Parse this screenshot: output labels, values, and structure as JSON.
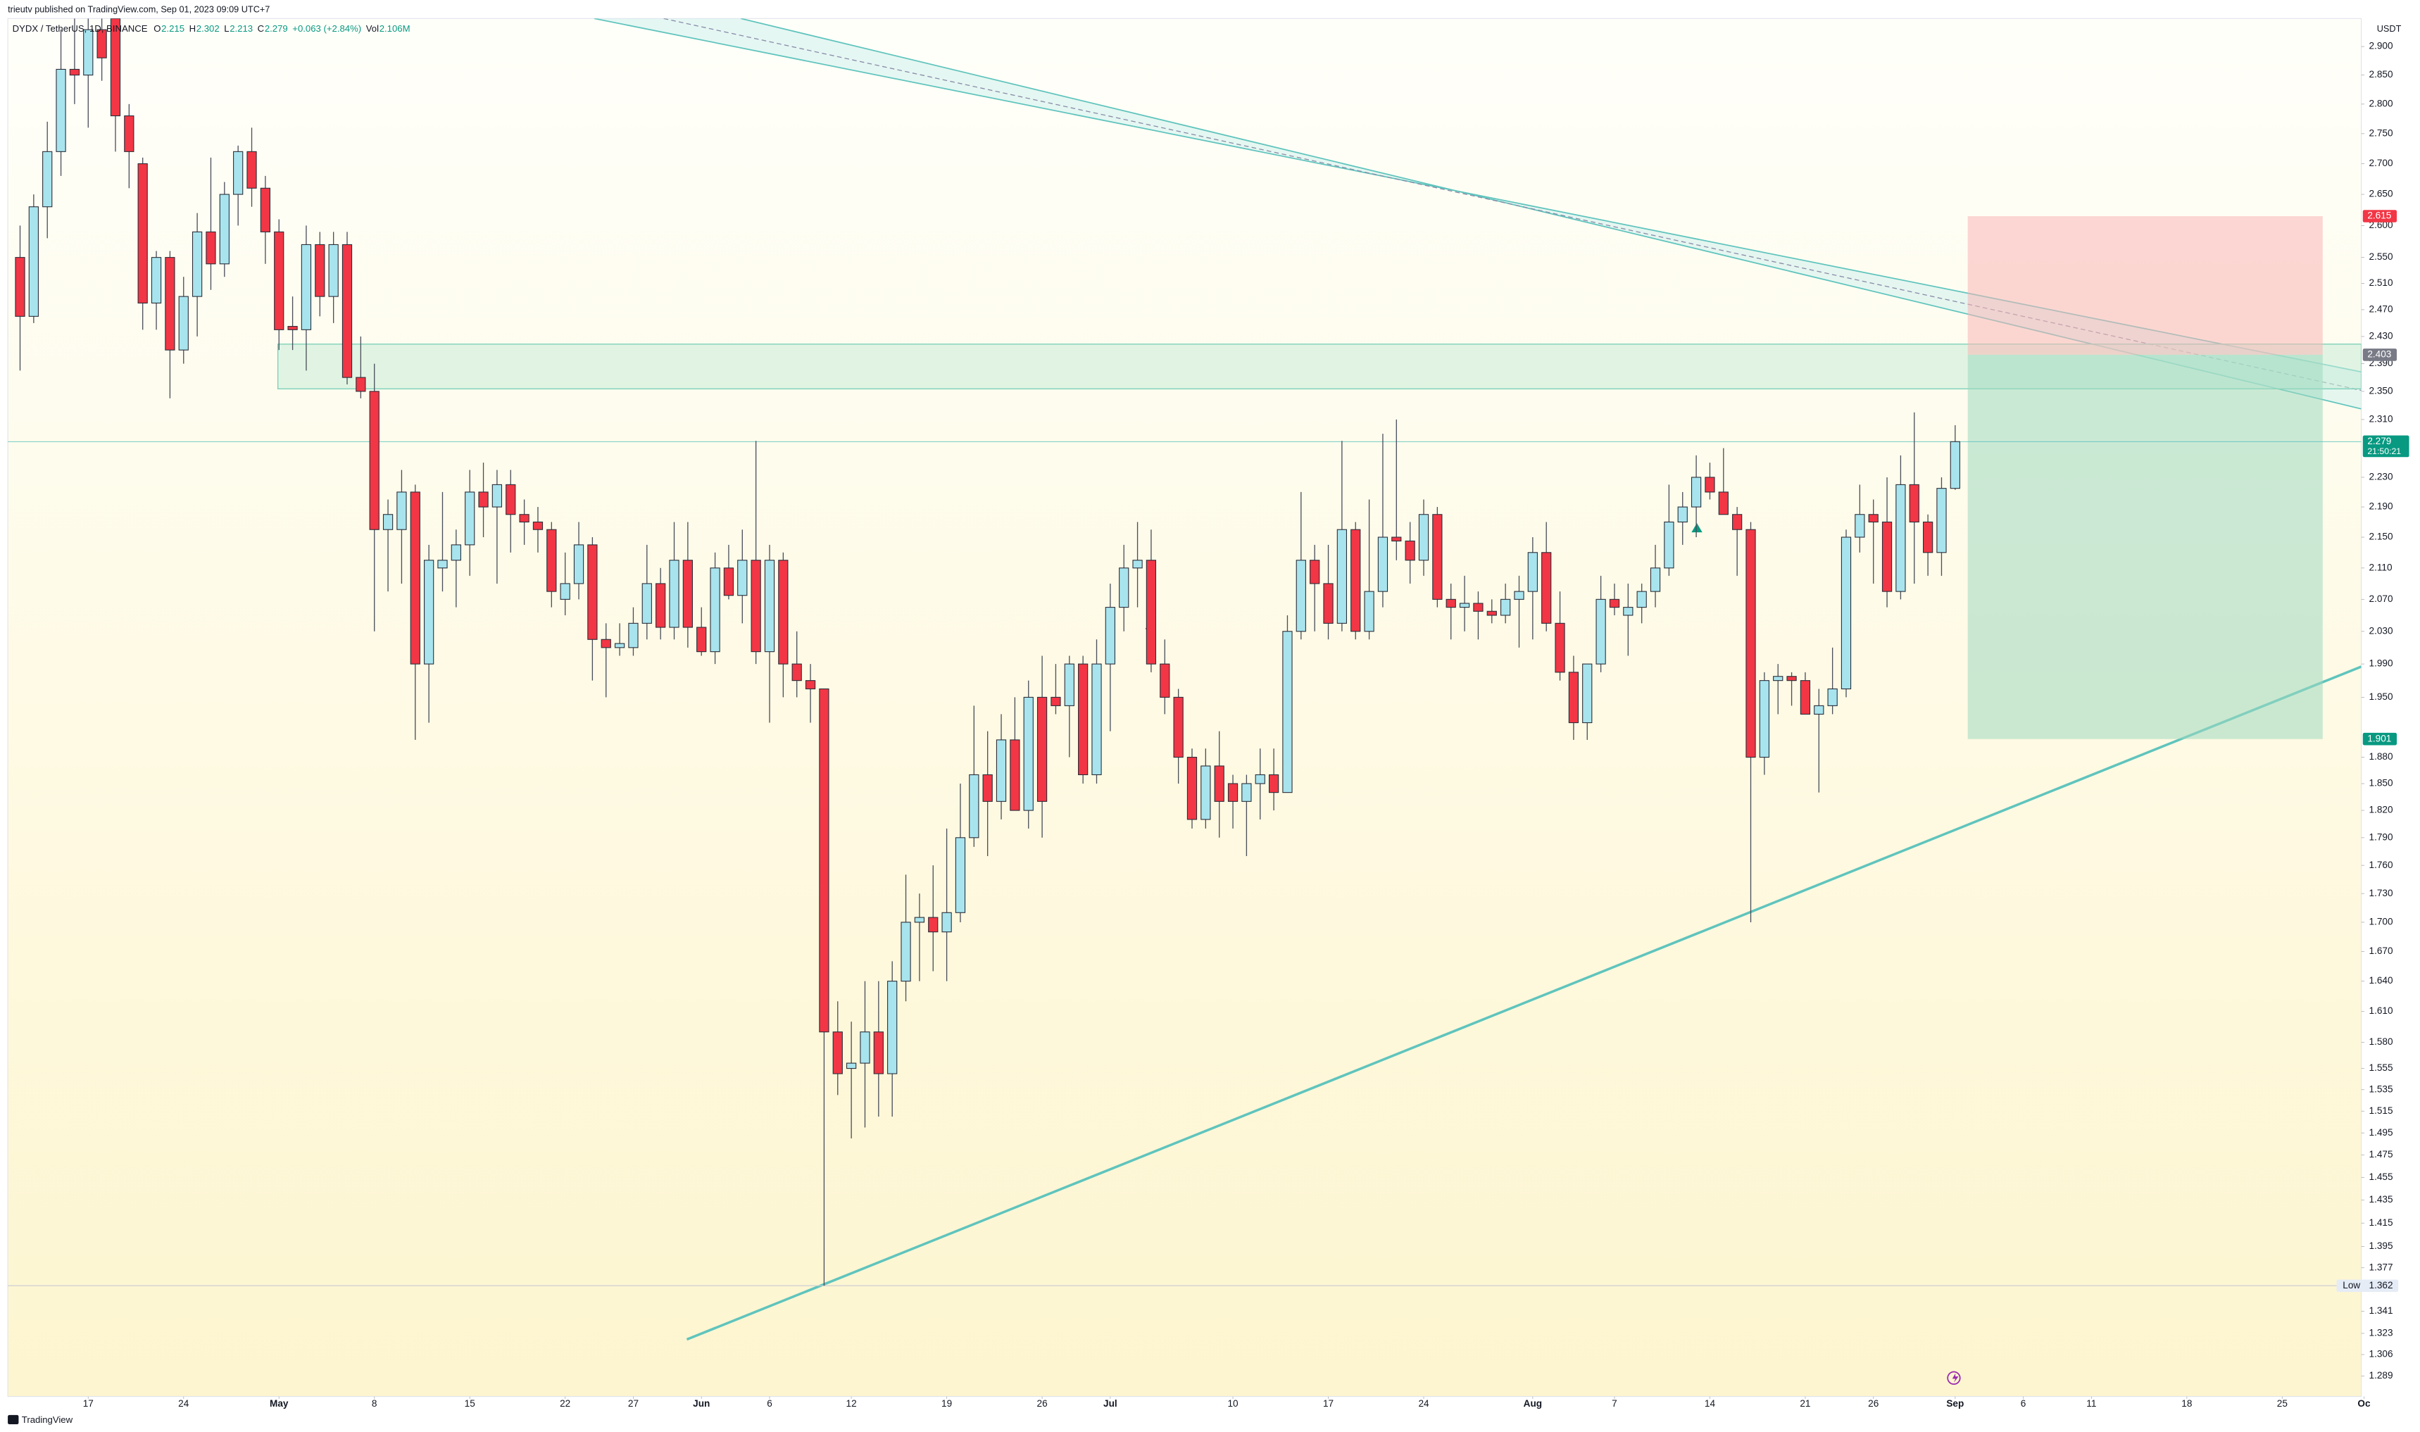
{
  "header": {
    "publisher": "trieutv published on TradingView.com, Sep 01, 2023 09:09 UTC+7",
    "symbol": "DYDX / TetherUS, 1D, BINANCE",
    "legend_labels": [
      "O",
      "H",
      "L",
      "C"
    ],
    "change": "+0.063 (+2.84%)",
    "volume_label": "Vol",
    "volume": "2.106M",
    "currency": "USDT",
    "brand": "TradingView"
  },
  "chart_data": {
    "type": "candlestick",
    "log_scale": true,
    "grid": false,
    "up_color": "#a8e4ee",
    "down_color": "#f23645",
    "ylim": [
      1.273,
      2.95
    ],
    "xlim": [
      -0.9,
      171.8
    ],
    "yticks": [
      {
        "value": 2.9,
        "label": "2.900"
      },
      {
        "value": 2.85,
        "label": "2.850"
      },
      {
        "value": 2.8,
        "label": "2.800"
      },
      {
        "value": 2.75,
        "label": "2.750"
      },
      {
        "value": 2.7,
        "label": "2.700"
      },
      {
        "value": 2.65,
        "label": "2.650"
      },
      {
        "value": 2.6,
        "label": "2.600"
      },
      {
        "value": 2.55,
        "label": "2.550"
      },
      {
        "value": 2.51,
        "label": "2.510"
      },
      {
        "value": 2.47,
        "label": "2.470"
      },
      {
        "value": 2.43,
        "label": "2.430"
      },
      {
        "value": 2.39,
        "label": "2.390"
      },
      {
        "value": 2.35,
        "label": "2.350"
      },
      {
        "value": 2.31,
        "label": "2.310"
      },
      {
        "value": 2.23,
        "label": "2.230"
      },
      {
        "value": 2.19,
        "label": "2.190"
      },
      {
        "value": 2.15,
        "label": "2.150"
      },
      {
        "value": 2.11,
        "label": "2.110"
      },
      {
        "value": 2.07,
        "label": "2.070"
      },
      {
        "value": 2.03,
        "label": "2.030"
      },
      {
        "value": 1.99,
        "label": "1.990"
      },
      {
        "value": 1.95,
        "label": "1.950"
      },
      {
        "value": 1.88,
        "label": "1.880"
      },
      {
        "value": 1.85,
        "label": "1.850"
      },
      {
        "value": 1.82,
        "label": "1.820"
      },
      {
        "value": 1.79,
        "label": "1.790"
      },
      {
        "value": 1.76,
        "label": "1.760"
      },
      {
        "value": 1.73,
        "label": "1.730"
      },
      {
        "value": 1.7,
        "label": "1.700"
      },
      {
        "value": 1.67,
        "label": "1.670"
      },
      {
        "value": 1.64,
        "label": "1.640"
      },
      {
        "value": 1.61,
        "label": "1.610"
      },
      {
        "value": 1.58,
        "label": "1.580"
      },
      1.555,
      1.535,
      1.515,
      1.495,
      1.475,
      1.455,
      1.435,
      1.415,
      1.395,
      1.377,
      1.341,
      1.323,
      1.306,
      1.289
    ],
    "xticks": [
      {
        "value": 5,
        "label": "17"
      },
      {
        "value": 12,
        "label": "24"
      },
      {
        "value": 19,
        "label": "May"
      },
      {
        "value": 26,
        "label": "8"
      },
      {
        "value": 33,
        "label": "15"
      },
      {
        "value": 40,
        "label": "22"
      },
      {
        "value": 45,
        "label": "27"
      },
      {
        "value": 50,
        "label": "Jun"
      },
      {
        "value": 55,
        "label": "6"
      },
      {
        "value": 61,
        "label": "12"
      },
      {
        "value": 68,
        "label": "19"
      },
      {
        "value": 75,
        "label": "26"
      },
      {
        "value": 80,
        "label": "Jul"
      },
      {
        "value": 89,
        "label": "10"
      },
      {
        "value": 96,
        "label": "17"
      },
      {
        "value": 103,
        "label": "24"
      },
      {
        "value": 111,
        "label": "Aug"
      },
      {
        "value": 117,
        "label": "7"
      },
      {
        "value": 124,
        "label": "14"
      },
      {
        "value": 131,
        "label": "21"
      },
      {
        "value": 136,
        "label": "26"
      },
      {
        "value": 142,
        "label": "Sep"
      },
      {
        "value": 147,
        "label": "6"
      },
      {
        "value": 152,
        "label": "11"
      },
      {
        "value": 159,
        "label": "18"
      },
      {
        "value": 166,
        "label": "25"
      },
      {
        "value": 172,
        "label": "Oc"
      }
    ],
    "price_labels": [
      {
        "label": "2.615",
        "value": 2.615,
        "color": "#f23645"
      },
      {
        "label": "2.403",
        "value": 2.403,
        "color": "#787b86"
      },
      {
        "label": "1.901",
        "value": 1.901,
        "color": "#089981"
      }
    ],
    "countdown": "21:50:21",
    "low": {
      "name": "Low",
      "value": 1.362
    },
    "ohlc": [
      [
        2.55,
        2.6,
        2.38,
        2.46
      ],
      [
        2.46,
        2.65,
        2.45,
        2.63
      ],
      [
        2.63,
        2.77,
        2.58,
        2.72
      ],
      [
        2.72,
        2.93,
        2.68,
        2.86
      ],
      [
        2.86,
        2.95,
        2.8,
        2.85
      ],
      [
        2.85,
        2.95,
        2.76,
        2.93
      ],
      [
        2.93,
        2.95,
        2.84,
        2.88
      ],
      [
        2.95,
        2.95,
        2.72,
        2.78
      ],
      [
        2.78,
        2.8,
        2.66,
        2.72
      ],
      [
        2.7,
        2.71,
        2.44,
        2.48
      ],
      [
        2.48,
        2.56,
        2.44,
        2.55
      ],
      [
        2.55,
        2.56,
        2.34,
        2.41
      ],
      [
        2.41,
        2.52,
        2.39,
        2.49
      ],
      [
        2.49,
        2.62,
        2.43,
        2.59
      ],
      [
        2.59,
        2.71,
        2.5,
        2.54
      ],
      [
        2.54,
        2.67,
        2.52,
        2.65
      ],
      [
        2.65,
        2.73,
        2.6,
        2.72
      ],
      [
        2.72,
        2.76,
        2.63,
        2.66
      ],
      [
        2.66,
        2.68,
        2.54,
        2.59
      ],
      [
        2.59,
        2.61,
        2.41,
        2.44
      ],
      [
        2.445,
        2.49,
        2.41,
        2.44
      ],
      [
        2.44,
        2.6,
        2.38,
        2.57
      ],
      [
        2.57,
        2.59,
        2.46,
        2.49
      ],
      [
        2.49,
        2.59,
        2.45,
        2.57
      ],
      [
        2.57,
        2.59,
        2.36,
        2.37
      ],
      [
        2.37,
        2.43,
        2.34,
        2.35
      ],
      [
        2.35,
        2.39,
        2.03,
        2.16
      ],
      [
        2.16,
        2.2,
        2.08,
        2.18
      ],
      [
        2.16,
        2.24,
        2.09,
        2.21
      ],
      [
        2.21,
        2.22,
        1.9,
        1.99
      ],
      [
        1.99,
        2.14,
        1.92,
        2.12
      ],
      [
        2.11,
        2.21,
        2.08,
        2.12
      ],
      [
        2.12,
        2.16,
        2.06,
        2.14
      ],
      [
        2.14,
        2.24,
        2.1,
        2.21
      ],
      [
        2.21,
        2.25,
        2.15,
        2.19
      ],
      [
        2.19,
        2.24,
        2.09,
        2.22
      ],
      [
        2.22,
        2.24,
        2.13,
        2.18
      ],
      [
        2.18,
        2.2,
        2.14,
        2.17
      ],
      [
        2.17,
        2.19,
        2.13,
        2.16
      ],
      [
        2.16,
        2.17,
        2.06,
        2.08
      ],
      [
        2.07,
        2.13,
        2.05,
        2.09
      ],
      [
        2.09,
        2.17,
        2.07,
        2.14
      ],
      [
        2.14,
        2.15,
        1.97,
        2.02
      ],
      [
        2.02,
        2.04,
        1.95,
        2.01
      ],
      [
        2.01,
        2.04,
        2.0,
        2.015
      ],
      [
        2.01,
        2.06,
        2.0,
        2.04
      ],
      [
        2.04,
        2.14,
        2.02,
        2.09
      ],
      [
        2.09,
        2.11,
        2.02,
        2.035
      ],
      [
        2.035,
        2.17,
        2.02,
        2.12
      ],
      [
        2.12,
        2.17,
        2.01,
        2.035
      ],
      [
        2.035,
        2.06,
        2.0,
        2.005
      ],
      [
        2.005,
        2.13,
        1.99,
        2.11
      ],
      [
        2.11,
        2.14,
        2.07,
        2.075
      ],
      [
        2.075,
        2.16,
        2.04,
        2.12
      ],
      [
        2.12,
        2.28,
        1.99,
        2.005
      ],
      [
        2.005,
        2.14,
        1.92,
        2.12
      ],
      [
        2.12,
        2.13,
        1.95,
        1.99
      ],
      [
        1.99,
        2.03,
        1.95,
        1.97
      ],
      [
        1.97,
        1.99,
        1.92,
        1.96
      ],
      [
        1.96,
        1.96,
        1.362,
        1.59
      ],
      [
        1.59,
        1.62,
        1.53,
        1.55
      ],
      [
        1.555,
        1.6,
        1.49,
        1.56
      ],
      [
        1.56,
        1.64,
        1.5,
        1.59
      ],
      [
        1.59,
        1.64,
        1.51,
        1.55
      ],
      [
        1.55,
        1.66,
        1.51,
        1.64
      ],
      [
        1.64,
        1.75,
        1.62,
        1.7
      ],
      [
        1.7,
        1.73,
        1.64,
        1.705
      ],
      [
        1.705,
        1.76,
        1.65,
        1.69
      ],
      [
        1.69,
        1.8,
        1.64,
        1.71
      ],
      [
        1.71,
        1.85,
        1.7,
        1.79
      ],
      [
        1.79,
        1.94,
        1.78,
        1.86
      ],
      [
        1.86,
        1.91,
        1.77,
        1.83
      ],
      [
        1.83,
        1.93,
        1.81,
        1.9
      ],
      [
        1.9,
        1.95,
        1.82,
        1.82
      ],
      [
        1.82,
        1.97,
        1.8,
        1.95
      ],
      [
        1.95,
        2.0,
        1.79,
        1.83
      ],
      [
        1.95,
        1.99,
        1.93,
        1.94
      ],
      [
        1.94,
        2.0,
        1.88,
        1.99
      ],
      [
        1.99,
        2.0,
        1.85,
        1.86
      ],
      [
        1.86,
        2.02,
        1.85,
        1.99
      ],
      [
        1.99,
        2.09,
        1.91,
        2.06
      ],
      [
        2.06,
        2.14,
        2.03,
        2.11
      ],
      [
        2.11,
        2.17,
        2.06,
        2.12
      ],
      [
        2.12,
        2.16,
        1.98,
        1.99
      ],
      [
        1.99,
        2.02,
        1.93,
        1.95
      ],
      [
        1.95,
        1.96,
        1.85,
        1.88
      ],
      [
        1.88,
        1.89,
        1.8,
        1.81
      ],
      [
        1.81,
        1.89,
        1.8,
        1.87
      ],
      [
        1.87,
        1.91,
        1.79,
        1.83
      ],
      [
        1.85,
        1.86,
        1.8,
        1.83
      ],
      [
        1.83,
        1.86,
        1.77,
        1.85
      ],
      [
        1.85,
        1.89,
        1.81,
        1.86
      ],
      [
        1.86,
        1.89,
        1.82,
        1.84
      ],
      [
        1.84,
        2.05,
        1.84,
        2.03
      ],
      [
        2.03,
        2.21,
        2.02,
        2.12
      ],
      [
        2.12,
        2.14,
        2.03,
        2.09
      ],
      [
        2.09,
        2.14,
        2.02,
        2.04
      ],
      [
        2.04,
        2.28,
        2.03,
        2.16
      ],
      [
        2.16,
        2.17,
        2.02,
        2.03
      ],
      [
        2.03,
        2.2,
        2.02,
        2.08
      ],
      [
        2.08,
        2.29,
        2.06,
        2.15
      ],
      [
        2.15,
        2.31,
        2.12,
        2.145
      ],
      [
        2.145,
        2.17,
        2.09,
        2.12
      ],
      [
        2.12,
        2.2,
        2.1,
        2.18
      ],
      [
        2.18,
        2.19,
        2.06,
        2.07
      ],
      [
        2.07,
        2.09,
        2.02,
        2.06
      ],
      [
        2.06,
        2.1,
        2.03,
        2.065
      ],
      [
        2.065,
        2.08,
        2.02,
        2.055
      ],
      [
        2.055,
        2.07,
        2.04,
        2.05
      ],
      [
        2.05,
        2.09,
        2.04,
        2.07
      ],
      [
        2.07,
        2.1,
        2.01,
        2.08
      ],
      [
        2.08,
        2.15,
        2.02,
        2.13
      ],
      [
        2.13,
        2.17,
        2.03,
        2.04
      ],
      [
        2.04,
        2.08,
        1.97,
        1.98
      ],
      [
        1.98,
        2.0,
        1.9,
        1.92
      ],
      [
        1.92,
        1.99,
        1.9,
        1.99
      ],
      [
        1.99,
        2.1,
        1.98,
        2.07
      ],
      [
        2.07,
        2.09,
        2.05,
        2.06
      ],
      [
        2.05,
        2.09,
        2.0,
        2.06
      ],
      [
        2.06,
        2.09,
        2.04,
        2.08
      ],
      [
        2.08,
        2.14,
        2.06,
        2.11
      ],
      [
        2.11,
        2.22,
        2.1,
        2.17
      ],
      [
        2.17,
        2.21,
        2.14,
        2.19
      ],
      [
        2.19,
        2.26,
        2.15,
        2.23
      ],
      [
        2.23,
        2.25,
        2.2,
        2.21
      ],
      [
        2.21,
        2.27,
        2.18,
        2.18
      ],
      [
        2.18,
        2.19,
        2.1,
        2.16
      ],
      [
        2.16,
        2.17,
        1.7,
        1.88
      ],
      [
        1.88,
        1.98,
        1.86,
        1.97
      ],
      [
        1.97,
        1.99,
        1.93,
        1.975
      ],
      [
        1.975,
        1.98,
        1.94,
        1.97
      ],
      [
        1.97,
        1.98,
        1.93,
        1.93
      ],
      [
        1.93,
        1.96,
        1.84,
        1.94
      ],
      [
        1.94,
        2.01,
        1.93,
        1.96
      ],
      [
        1.96,
        2.16,
        1.95,
        2.15
      ],
      [
        2.15,
        2.22,
        2.13,
        2.18
      ],
      [
        2.18,
        2.2,
        2.09,
        2.17
      ],
      [
        2.17,
        2.23,
        2.06,
        2.08
      ],
      [
        2.08,
        2.26,
        2.07,
        2.22
      ],
      [
        2.22,
        2.32,
        2.09,
        2.17
      ],
      [
        2.17,
        2.18,
        2.1,
        2.13
      ],
      [
        2.13,
        2.23,
        2.1,
        2.215
      ],
      [
        2.215,
        2.302,
        2.213,
        2.279
      ]
    ]
  }
}
